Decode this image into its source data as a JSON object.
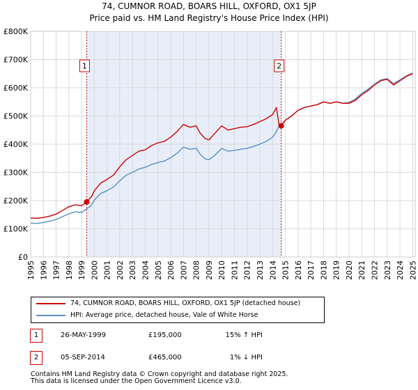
{
  "chart_data": {
    "type": "line",
    "title": "74, CUMNOR ROAD, BOARS HILL, OXFORD, OX1 5JP",
    "subtitle": "Price paid vs. HM Land Registry's House Price Index (HPI)",
    "xlim": [
      1995,
      2025.2
    ],
    "ylim": [
      0,
      800000
    ],
    "x_ticks": [
      1995,
      1996,
      1997,
      1998,
      1999,
      2000,
      2001,
      2002,
      2003,
      2004,
      2005,
      2006,
      2007,
      2008,
      2009,
      2010,
      2011,
      2012,
      2013,
      2014,
      2015,
      2016,
      2017,
      2018,
      2019,
      2020,
      2021,
      2022,
      2023,
      2024,
      2025
    ],
    "y_ticks": [
      0,
      100000,
      200000,
      300000,
      400000,
      500000,
      600000,
      700000,
      800000
    ],
    "y_tick_labels": [
      "£0",
      "£100K",
      "£200K",
      "£300K",
      "£400K",
      "£500K",
      "£600K",
      "£700K",
      "£800K"
    ],
    "shaded_ranges": [
      [
        1999.4,
        2014.68
      ]
    ],
    "colors": {
      "property": "#cc0000",
      "hpi": "#5b8ec4",
      "shade": "#e8eef9",
      "grid": "#d9d9d9",
      "marker_line": "#cc0000"
    },
    "series": [
      {
        "name": "74, CUMNOR ROAD, BOARS HILL, OXFORD, OX1 5JP (detached house)",
        "x": [
          1995,
          1995.5,
          1996,
          1996.5,
          1997,
          1997.5,
          1998,
          1998.5,
          1999,
          1999.4,
          1999.8,
          2000,
          2000.5,
          2001,
          2001.5,
          2002,
          2002.5,
          2003,
          2003.5,
          2004,
          2004.5,
          2005,
          2005.5,
          2006,
          2006.5,
          2007,
          2007.5,
          2008,
          2008.3,
          2008.7,
          2009,
          2009.5,
          2010,
          2010.5,
          2011,
          2011.5,
          2012,
          2012.5,
          2013,
          2013.5,
          2014,
          2014.3,
          2014.5,
          2014.68,
          2015,
          2015.5,
          2016,
          2016.5,
          2017,
          2017.5,
          2018,
          2018.5,
          2019,
          2019.5,
          2020,
          2020.5,
          2021,
          2021.5,
          2022,
          2022.5,
          2023,
          2023.5,
          2024,
          2024.5,
          2025
        ],
        "values": [
          138000,
          137000,
          140000,
          145000,
          152000,
          165000,
          178000,
          185000,
          182000,
          195000,
          215000,
          235000,
          262000,
          275000,
          290000,
          320000,
          345000,
          360000,
          375000,
          380000,
          395000,
          405000,
          410000,
          425000,
          445000,
          470000,
          460000,
          465000,
          440000,
          420000,
          415000,
          440000,
          465000,
          450000,
          455000,
          460000,
          462000,
          470000,
          480000,
          490000,
          505000,
          530000,
          470000,
          465000,
          485000,
          500000,
          520000,
          530000,
          535000,
          540000,
          550000,
          545000,
          550000,
          545000,
          545000,
          555000,
          575000,
          590000,
          610000,
          625000,
          630000,
          610000,
          625000,
          640000,
          650000
        ]
      },
      {
        "name": "HPI: Average price, detached house, Vale of White Horse",
        "x": [
          1995,
          1995.5,
          1996,
          1996.5,
          1997,
          1997.5,
          1998,
          1998.5,
          1999,
          1999.4,
          1999.8,
          2000,
          2000.5,
          2001,
          2001.5,
          2002,
          2002.5,
          2003,
          2003.5,
          2004,
          2004.5,
          2005,
          2005.5,
          2006,
          2006.5,
          2007,
          2007.5,
          2008,
          2008.3,
          2008.7,
          2009,
          2009.5,
          2010,
          2010.5,
          2011,
          2011.5,
          2012,
          2012.5,
          2013,
          2013.5,
          2014,
          2014.3,
          2014.5,
          2014.68,
          2015,
          2015.5,
          2016,
          2016.5,
          2017,
          2017.5,
          2018,
          2018.5,
          2019,
          2019.5,
          2020,
          2020.5,
          2021,
          2021.5,
          2022,
          2022.5,
          2023,
          2023.5,
          2024,
          2024.5,
          2025
        ],
        "values": [
          120000,
          119000,
          122000,
          127000,
          133000,
          143000,
          153000,
          160000,
          158000,
          170000,
          185000,
          202000,
          225000,
          235000,
          248000,
          270000,
          290000,
          300000,
          312000,
          318000,
          328000,
          335000,
          340000,
          352000,
          368000,
          390000,
          382000,
          385000,
          365000,
          348000,
          345000,
          362000,
          385000,
          375000,
          378000,
          382000,
          385000,
          392000,
          400000,
          410000,
          425000,
          445000,
          465000,
          470000,
          485000,
          500000,
          520000,
          530000,
          535000,
          540000,
          550000,
          545000,
          550000,
          545000,
          548000,
          560000,
          580000,
          595000,
          612000,
          628000,
          632000,
          615000,
          628000,
          642000,
          652000
        ]
      }
    ],
    "sale_markers": [
      {
        "label": "1",
        "x": 1999.4,
        "value": 195000
      },
      {
        "label": "2",
        "x": 2014.68,
        "value": 465000
      }
    ]
  },
  "legend": {
    "property_label": "74, CUMNOR ROAD, BOARS HILL, OXFORD, OX1 5JP (detached house)",
    "hpi_label": "HPI: Average price, detached house, Vale of White Horse"
  },
  "annotations": [
    {
      "num": "1",
      "date": "26-MAY-1999",
      "price": "£195,000",
      "hpi": "15% ↑ HPI"
    },
    {
      "num": "2",
      "date": "05-SEP-2014",
      "price": "£465,000",
      "hpi": "1% ↓ HPI"
    }
  ],
  "footer": {
    "line1": "Contains HM Land Registry data © Crown copyright and database right 2025.",
    "line2": "This data is licensed under the Open Government Licence v3.0."
  }
}
